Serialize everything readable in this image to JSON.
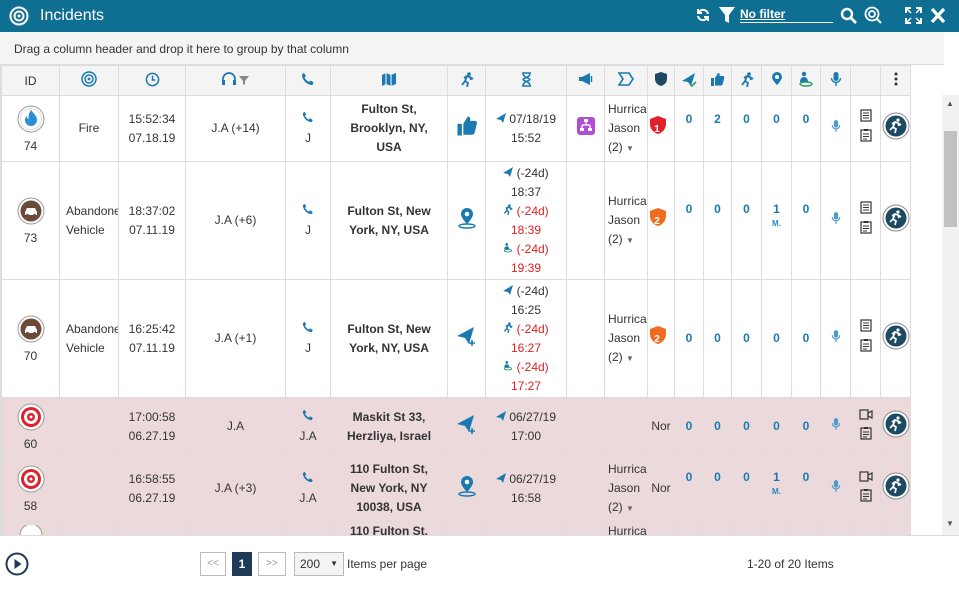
{
  "window": {
    "title": "Incidents",
    "filter_label": "No filter"
  },
  "groupbar": {
    "hint": "Drag a column header and drop it here to group by that column"
  },
  "columns": {
    "id": "ID"
  },
  "rows": [
    {
      "id": "74",
      "type": "Fire",
      "time": "15:52:34",
      "date": "07.18.19",
      "dispatcher": "J.A (+14)",
      "caller": "J",
      "addr1": "Fulton St,",
      "addr2": "Brooklyn, NY,",
      "addr3": "USA",
      "sent_date": "07/18/19",
      "sent_time": "15:52",
      "event1": "Hurrica",
      "event2": "Jason",
      "event3": "(2)",
      "level": "1",
      "c1": "0",
      "c2": "2",
      "c3": "0",
      "c4": "0",
      "c5": "0"
    },
    {
      "id": "73",
      "type1": "Abandone",
      "type2": "Vehicle",
      "time": "18:37:02",
      "date": "07.11.19",
      "dispatcher": "J.A (+6)",
      "caller": "J",
      "addr1": "Fulton St, New",
      "addr2": "York, NY, USA",
      "t1": "(-24d)",
      "t1v": "18:37",
      "t2": "(-24d)",
      "t2v": "18:39",
      "t3": "(-24d)",
      "t3v": "19:39",
      "event1": "Hurrica",
      "event2": "Jason",
      "event3": "(2)",
      "level": "2",
      "c1": "0",
      "c2": "0",
      "c3": "0",
      "c4": "1",
      "c4sub": "M.",
      "c5": "0"
    },
    {
      "id": "70",
      "type1": "Abandone",
      "type2": "Vehicle",
      "time": "16:25:42",
      "date": "07.11.19",
      "dispatcher": "J.A (+1)",
      "caller": "J",
      "addr1": "Fulton St, New",
      "addr2": "York, NY, USA",
      "t1": "(-24d)",
      "t1v": "16:25",
      "t2": "(-24d)",
      "t2v": "16:27",
      "t3": "(-24d)",
      "t3v": "17:27",
      "event1": "Hurrica",
      "event2": "Jason",
      "event3": "(2)",
      "level": "2",
      "c1": "0",
      "c2": "0",
      "c3": "0",
      "c4": "0",
      "c5": "0"
    },
    {
      "id": "60",
      "time": "17:00:58",
      "date": "06.27.19",
      "dispatcher": "J.A",
      "caller": "J.A",
      "addr1": "Maskit St 33,",
      "addr2": "Herzliya, Israel",
      "sent_date": "06/27/19",
      "sent_time": "17:00",
      "level_text": "Nor",
      "c1": "0",
      "c2": "0",
      "c3": "0",
      "c4": "0",
      "c5": "0"
    },
    {
      "id": "58",
      "time": "16:58:55",
      "date": "06.27.19",
      "dispatcher": "J.A (+3)",
      "caller": "J.A",
      "addr1": "110 Fulton St,",
      "addr2": "New York, NY",
      "addr3": "10038, USA",
      "sent_date": "06/27/19",
      "sent_time": "16:58",
      "event1": "Hurrica",
      "event2": "Jason",
      "event3": "(2)",
      "level_text": "Nor",
      "c1": "0",
      "c2": "0",
      "c3": "0",
      "c4": "1",
      "c4sub": "M.",
      "c5": "0"
    },
    {
      "addr1": "110 Fulton St,",
      "event1": "Hurrica"
    }
  ],
  "pager": {
    "first": "<<",
    "current": "1",
    "last": ">>",
    "page_size": "200",
    "per_page_label": "Items per page",
    "summary": "1-20 of 20 Items"
  },
  "colors": {
    "header": "#0f6f93",
    "accent": "#1a7ab0",
    "alert_red": "#e02020",
    "pink_row": "#ecd9db",
    "badge_red": "#e0202a",
    "badge_orange": "#f06a20"
  }
}
